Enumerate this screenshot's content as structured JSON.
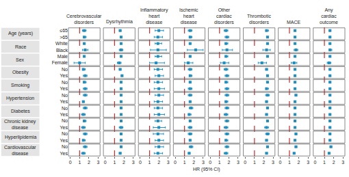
{
  "chart_data": {
    "type": "forest",
    "x_label": "HR (95% CI)",
    "xlim": [
      -0.2,
      3.2
    ],
    "xticks": [
      0,
      1,
      2,
      3
    ],
    "reference_line": 1,
    "color": "#1f8fc0",
    "reference_color": "#d62728",
    "groups": [
      {
        "name": "Age (years)",
        "levels": [
          "≤65",
          ">65"
        ]
      },
      {
        "name": "Race",
        "levels": [
          "White",
          "Black"
        ]
      },
      {
        "name": "Sex",
        "levels": [
          "Male",
          "Female"
        ]
      },
      {
        "name": "Obesity",
        "levels": [
          "No",
          "Yes"
        ]
      },
      {
        "name": "Smoking",
        "levels": [
          "No",
          "Yes"
        ]
      },
      {
        "name": "Hypertension",
        "levels": [
          "No",
          "Yes"
        ]
      },
      {
        "name": "Diabetes",
        "levels": [
          "No",
          "Yes"
        ]
      },
      {
        "name": "Chronic kidney disease",
        "levels": [
          "No",
          "Yes"
        ]
      },
      {
        "name": "Hyperlipidemia",
        "levels": [
          "No",
          "Yes"
        ]
      },
      {
        "name": "Cardiovascular disease",
        "levels": [
          "No",
          "Yes"
        ]
      }
    ],
    "series": [
      {
        "name": "Cerebrovascular disorders",
        "values": [
          1.5,
          1.5,
          1.5,
          1.6,
          1.5,
          1.0,
          1.4,
          1.6,
          1.5,
          1.6,
          1.6,
          1.4,
          1.6,
          1.4,
          1.5,
          1.4,
          1.6,
          1.4,
          1.6,
          1.4
        ],
        "lower": [
          1.3,
          1.4,
          1.4,
          1.3,
          1.4,
          0.4,
          1.3,
          1.4,
          1.4,
          1.4,
          1.4,
          1.3,
          1.4,
          1.2,
          1.4,
          1.2,
          1.4,
          1.3,
          1.4,
          1.2
        ],
        "upper": [
          1.7,
          1.7,
          1.6,
          1.9,
          1.6,
          1.6,
          1.6,
          1.8,
          1.7,
          1.8,
          1.8,
          1.5,
          1.8,
          1.6,
          1.7,
          1.6,
          1.8,
          1.6,
          1.8,
          1.6
        ]
      },
      {
        "name": "Dysrhythmia",
        "values": [
          1.6,
          1.7,
          1.7,
          1.7,
          1.7,
          1.5,
          1.6,
          1.8,
          1.7,
          1.7,
          1.7,
          1.7,
          1.7,
          1.7,
          1.7,
          1.7,
          1.7,
          1.7,
          1.7,
          1.6
        ],
        "lower": [
          1.5,
          1.6,
          1.6,
          1.5,
          1.6,
          1.3,
          1.5,
          1.7,
          1.6,
          1.6,
          1.6,
          1.6,
          1.6,
          1.6,
          1.6,
          1.5,
          1.6,
          1.6,
          1.6,
          1.5
        ],
        "upper": [
          1.7,
          1.8,
          1.8,
          1.9,
          1.8,
          1.7,
          1.7,
          1.9,
          1.8,
          1.8,
          1.8,
          1.8,
          1.8,
          1.8,
          1.8,
          1.9,
          1.8,
          1.8,
          1.8,
          1.7
        ]
      },
      {
        "name": "Inflammatory heart disease",
        "values": [
          2.0,
          1.9,
          1.9,
          1.9,
          1.9,
          1.7,
          1.9,
          2.0,
          1.9,
          2.0,
          2.0,
          1.9,
          1.9,
          2.0,
          1.9,
          2.0,
          1.9,
          2.0,
          2.0,
          1.9
        ],
        "lower": [
          1.6,
          1.5,
          1.6,
          1.1,
          1.6,
          1.0,
          1.5,
          1.6,
          1.5,
          1.5,
          1.6,
          1.5,
          1.5,
          1.5,
          1.6,
          1.4,
          1.4,
          1.6,
          1.6,
          1.5
        ],
        "upper": [
          2.5,
          2.4,
          2.3,
          2.8,
          2.3,
          2.6,
          2.4,
          2.5,
          2.4,
          2.6,
          2.5,
          2.4,
          2.4,
          2.6,
          2.3,
          2.7,
          2.5,
          2.5,
          2.5,
          2.4
        ]
      },
      {
        "name": "Ischemic heart disease",
        "values": [
          1.6,
          1.6,
          1.6,
          2.2,
          1.6,
          1.4,
          1.6,
          1.6,
          1.6,
          1.6,
          1.6,
          1.6,
          1.7,
          1.5,
          1.6,
          1.6,
          1.6,
          1.6,
          1.7,
          1.5
        ],
        "lower": [
          1.4,
          1.5,
          1.5,
          1.3,
          1.5,
          1.0,
          1.4,
          1.5,
          1.5,
          1.4,
          1.4,
          1.5,
          1.5,
          1.4,
          1.5,
          1.4,
          1.4,
          1.5,
          1.5,
          1.4
        ],
        "upper": [
          1.8,
          1.8,
          1.7,
          3.0,
          1.7,
          1.9,
          1.8,
          1.8,
          1.7,
          1.8,
          1.8,
          1.7,
          1.9,
          1.7,
          1.7,
          1.8,
          1.8,
          1.7,
          1.9,
          1.6
        ]
      },
      {
        "name": "Other cardiac disorders",
        "values": [
          1.7,
          1.8,
          1.7,
          1.8,
          1.7,
          1.5,
          1.7,
          1.8,
          1.7,
          1.8,
          1.8,
          1.7,
          1.8,
          1.7,
          1.8,
          1.7,
          1.8,
          1.7,
          1.8,
          1.7
        ],
        "lower": [
          1.5,
          1.6,
          1.6,
          1.3,
          1.6,
          1.1,
          1.5,
          1.6,
          1.6,
          1.6,
          1.6,
          1.6,
          1.6,
          1.5,
          1.6,
          1.5,
          1.6,
          1.6,
          1.6,
          1.5
        ],
        "upper": [
          1.9,
          2.0,
          1.9,
          2.4,
          1.9,
          2.0,
          1.9,
          2.0,
          1.9,
          2.0,
          2.0,
          1.9,
          2.0,
          1.9,
          2.0,
          1.9,
          2.0,
          1.9,
          2.0,
          1.9
        ]
      },
      {
        "name": "Thrombotic disorders",
        "values": [
          2.3,
          2.4,
          2.4,
          2.3,
          2.4,
          1.8,
          2.3,
          2.4,
          2.4,
          2.3,
          2.4,
          2.3,
          2.4,
          2.3,
          2.4,
          2.3,
          2.4,
          2.3,
          2.4,
          2.3
        ],
        "lower": [
          2.2,
          2.3,
          2.3,
          1.9,
          2.3,
          1.4,
          2.2,
          2.3,
          2.3,
          2.2,
          2.2,
          2.2,
          2.3,
          2.2,
          2.3,
          2.1,
          2.2,
          2.2,
          2.3,
          2.2
        ],
        "upper": [
          2.5,
          2.5,
          2.5,
          2.7,
          2.5,
          2.3,
          2.4,
          2.5,
          2.5,
          2.5,
          2.6,
          2.4,
          2.5,
          2.4,
          2.5,
          2.5,
          2.6,
          2.4,
          2.5,
          2.4
        ]
      },
      {
        "name": "MACE",
        "values": [
          1.6,
          1.6,
          1.6,
          1.7,
          1.6,
          1.5,
          1.6,
          1.6,
          1.6,
          1.6,
          1.7,
          1.6,
          1.6,
          1.6,
          1.6,
          1.6,
          1.7,
          1.6,
          1.7,
          1.5
        ],
        "lower": [
          1.5,
          1.5,
          1.5,
          1.5,
          1.5,
          1.2,
          1.5,
          1.5,
          1.5,
          1.5,
          1.6,
          1.5,
          1.5,
          1.5,
          1.5,
          1.5,
          1.6,
          1.5,
          1.6,
          1.4
        ],
        "upper": [
          1.7,
          1.7,
          1.7,
          1.9,
          1.7,
          1.8,
          1.7,
          1.7,
          1.7,
          1.7,
          1.8,
          1.7,
          1.7,
          1.7,
          1.7,
          1.7,
          1.8,
          1.7,
          1.8,
          1.6
        ]
      },
      {
        "name": "Any cardiac outcome",
        "values": [
          1.6,
          1.6,
          1.6,
          1.6,
          1.6,
          1.5,
          1.6,
          1.6,
          1.6,
          1.6,
          1.6,
          1.6,
          1.6,
          1.6,
          1.6,
          1.6,
          1.6,
          1.6,
          1.7,
          1.5
        ],
        "lower": [
          1.5,
          1.5,
          1.5,
          1.5,
          1.5,
          1.3,
          1.5,
          1.5,
          1.5,
          1.5,
          1.5,
          1.5,
          1.5,
          1.5,
          1.5,
          1.5,
          1.5,
          1.5,
          1.6,
          1.4
        ],
        "upper": [
          1.7,
          1.7,
          1.7,
          1.8,
          1.7,
          1.7,
          1.7,
          1.7,
          1.7,
          1.7,
          1.7,
          1.7,
          1.7,
          1.7,
          1.7,
          1.7,
          1.7,
          1.7,
          1.8,
          1.6
        ]
      }
    ]
  }
}
